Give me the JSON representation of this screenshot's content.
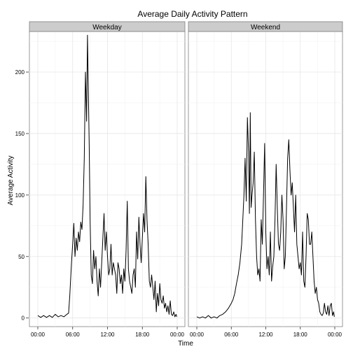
{
  "chart_data": {
    "type": "line",
    "title": "Average Daily Activity Pattern",
    "xlabel": "Time",
    "ylabel": "Average Activity",
    "xlim_hours": [
      0,
      24
    ],
    "ylim": [
      -7,
      233
    ],
    "x_ticks": [
      0,
      6,
      12,
      18,
      24
    ],
    "x_tick_labels": [
      "00:00",
      "06:00",
      "12:00",
      "18:00",
      "00:00"
    ],
    "y_ticks": [
      0,
      50,
      100,
      150,
      200
    ],
    "grid": true,
    "facets": [
      "Weekday",
      "Weekend"
    ],
    "series": [
      {
        "name": "Weekday",
        "x": [
          0,
          0.5,
          1,
          1.5,
          2,
          2.5,
          3,
          3.5,
          4,
          4.5,
          5,
          5.3,
          5.5,
          5.8,
          6,
          6.2,
          6.4,
          6.6,
          6.8,
          7.0,
          7.2,
          7.4,
          7.6,
          7.8,
          8.0,
          8.2,
          8.4,
          8.55,
          8.7,
          8.85,
          9.0,
          9.2,
          9.4,
          9.6,
          9.8,
          10.0,
          10.2,
          10.4,
          10.6,
          10.8,
          11.0,
          11.2,
          11.4,
          11.6,
          11.8,
          12.0,
          12.2,
          12.4,
          12.6,
          12.8,
          13.0,
          13.2,
          13.4,
          13.6,
          13.8,
          14.0,
          14.2,
          14.4,
          14.6,
          14.8,
          15.0,
          15.2,
          15.4,
          15.6,
          15.8,
          16.0,
          16.2,
          16.4,
          16.6,
          16.8,
          17.0,
          17.2,
          17.4,
          17.6,
          17.8,
          18.0,
          18.2,
          18.4,
          18.6,
          18.8,
          19.0,
          19.2,
          19.4,
          19.6,
          19.8,
          20.0,
          20.2,
          20.4,
          20.6,
          20.8,
          21.0,
          21.2,
          21.4,
          21.6,
          21.8,
          22.0,
          22.2,
          22.4,
          22.6,
          22.8,
          23.0,
          23.2,
          23.4,
          23.6,
          23.8,
          23.92
        ],
        "values": [
          2,
          0.5,
          2,
          0.5,
          2,
          0.5,
          3,
          1,
          2,
          1,
          3,
          4,
          18,
          45,
          60,
          77,
          50,
          65,
          55,
          70,
          62,
          78,
          72,
          92,
          130,
          200,
          160,
          230,
          185,
          140,
          80,
          35,
          28,
          55,
          40,
          50,
          30,
          18,
          40,
          25,
          45,
          65,
          85,
          55,
          70,
          50,
          35,
          40,
          60,
          35,
          45,
          40,
          35,
          20,
          45,
          40,
          28,
          35,
          20,
          40,
          30,
          55,
          95,
          40,
          30,
          25,
          20,
          35,
          40,
          25,
          70,
          48,
          82,
          60,
          45,
          65,
          85,
          70,
          115,
          80,
          60,
          30,
          25,
          35,
          25,
          15,
          30,
          5,
          20,
          10,
          28,
          15,
          12,
          18,
          8,
          12,
          5,
          10,
          3,
          14,
          3,
          2,
          5,
          1,
          3,
          1
        ]
      },
      {
        "name": "Weekend",
        "x": [
          0,
          0.5,
          1,
          1.5,
          2,
          2.5,
          3,
          3.5,
          4,
          4.5,
          5,
          5.5,
          6,
          6.3,
          6.6,
          6.9,
          7.2,
          7.5,
          7.8,
          8.0,
          8.2,
          8.4,
          8.6,
          8.8,
          9.0,
          9.15,
          9.3,
          9.45,
          9.6,
          9.8,
          10.0,
          10.2,
          10.4,
          10.6,
          10.8,
          11.0,
          11.2,
          11.4,
          11.6,
          11.8,
          12.0,
          12.2,
          12.4,
          12.6,
          12.8,
          13.0,
          13.2,
          13.4,
          13.6,
          13.8,
          14.0,
          14.2,
          14.4,
          14.6,
          14.8,
          15.0,
          15.2,
          15.4,
          15.6,
          15.8,
          16.0,
          16.2,
          16.4,
          16.6,
          16.8,
          17.0,
          17.2,
          17.4,
          17.6,
          17.8,
          18.0,
          18.2,
          18.4,
          18.6,
          18.8,
          19.0,
          19.2,
          19.4,
          19.6,
          19.8,
          20.0,
          20.2,
          20.4,
          20.6,
          20.8,
          21.0,
          21.2,
          21.4,
          21.6,
          21.8,
          22.0,
          22.2,
          22.4,
          22.6,
          22.8,
          23.0,
          23.2,
          23.4,
          23.6,
          23.8,
          23.92
        ],
        "values": [
          1,
          0,
          1,
          0,
          2,
          0,
          1,
          0,
          2,
          3,
          5,
          8,
          12,
          15,
          20,
          28,
          35,
          45,
          60,
          80,
          100,
          130,
          95,
          163,
          135,
          85,
          167,
          90,
          100,
          110,
          135,
          80,
          50,
          35,
          40,
          30,
          80,
          60,
          100,
          142,
          70,
          40,
          50,
          35,
          70,
          30,
          42,
          50,
          80,
          125,
          90,
          60,
          55,
          70,
          100,
          80,
          40,
          50,
          90,
          130,
          145,
          120,
          100,
          110,
          90,
          70,
          100,
          60,
          50,
          40,
          45,
          35,
          70,
          30,
          25,
          50,
          85,
          80,
          60,
          60,
          70,
          50,
          30,
          20,
          25,
          15,
          12,
          5,
          3,
          2,
          4,
          12,
          5,
          3,
          10,
          2,
          10,
          12,
          2,
          5,
          1
        ]
      }
    ]
  }
}
